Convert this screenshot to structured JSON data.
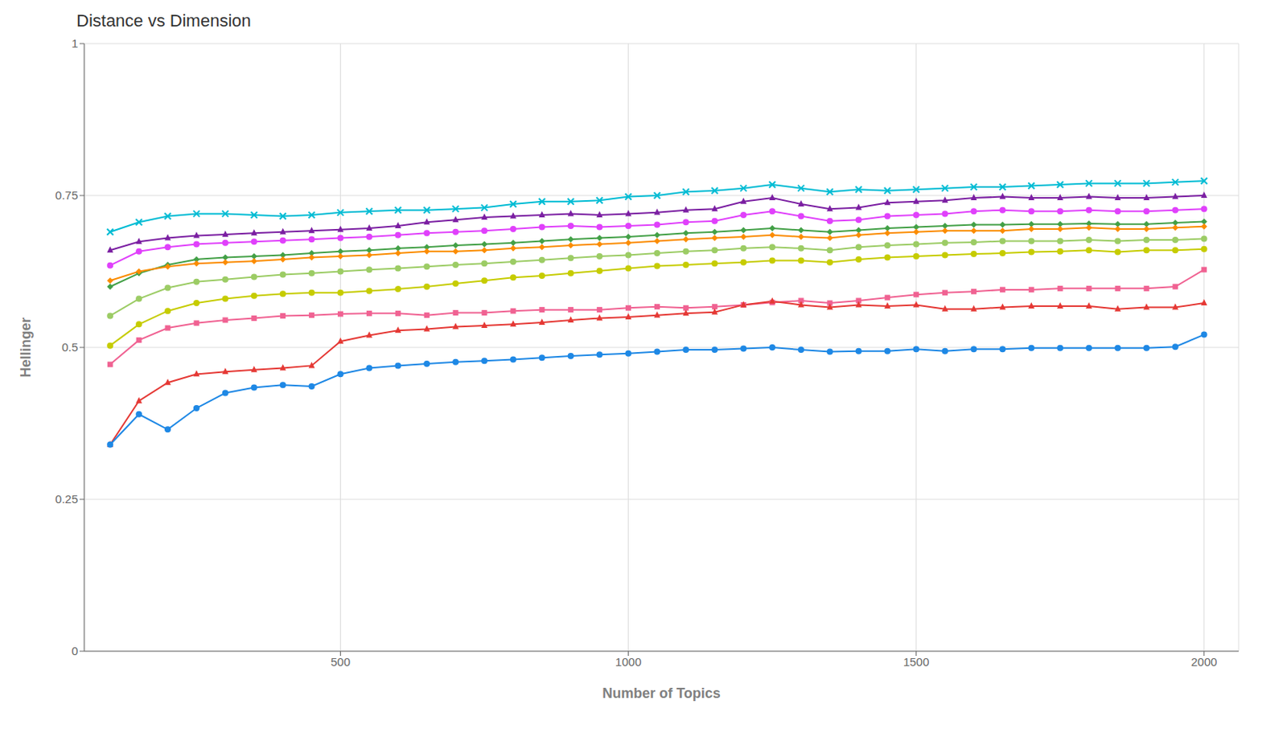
{
  "chart_data": {
    "type": "line",
    "title": "Distance vs Dimension",
    "xlabel": "Number of Topics",
    "ylabel": "Hellinger",
    "xlim": [
      55,
      2060
    ],
    "xticks": [
      500,
      1000,
      1500,
      2000
    ],
    "ylim": [
      0,
      1
    ],
    "yticks": [
      0,
      0.25,
      0.5,
      0.75,
      1
    ],
    "grid": true,
    "x": [
      100,
      150,
      200,
      250,
      300,
      350,
      400,
      450,
      500,
      550,
      600,
      650,
      700,
      750,
      800,
      850,
      900,
      950,
      1000,
      1050,
      1100,
      1150,
      1200,
      1250,
      1300,
      1350,
      1400,
      1450,
      1500,
      1550,
      1600,
      1650,
      1700,
      1750,
      1800,
      1850,
      1900,
      1950,
      2000
    ],
    "series": [
      {
        "color": "#00bcd4",
        "marker": "x",
        "values": [
          0.69,
          0.706,
          0.716,
          0.72,
          0.72,
          0.718,
          0.716,
          0.718,
          0.722,
          0.724,
          0.726,
          0.726,
          0.728,
          0.73,
          0.736,
          0.74,
          0.74,
          0.742,
          0.748,
          0.75,
          0.756,
          0.758,
          0.762,
          0.768,
          0.762,
          0.756,
          0.76,
          0.758,
          0.76,
          0.762,
          0.764,
          0.764,
          0.766,
          0.768,
          0.77,
          0.77,
          0.77,
          0.772,
          0.774
        ]
      },
      {
        "color": "#7b1fa2",
        "marker": "triangle",
        "values": [
          0.66,
          0.674,
          0.68,
          0.684,
          0.686,
          0.688,
          0.69,
          0.692,
          0.694,
          0.696,
          0.7,
          0.706,
          0.71,
          0.714,
          0.716,
          0.718,
          0.72,
          0.718,
          0.72,
          0.722,
          0.726,
          0.728,
          0.74,
          0.746,
          0.736,
          0.728,
          0.73,
          0.738,
          0.74,
          0.742,
          0.746,
          0.748,
          0.746,
          0.746,
          0.748,
          0.746,
          0.746,
          0.748,
          0.75
        ]
      },
      {
        "color": "#e040fb",
        "marker": "circle",
        "values": [
          0.635,
          0.658,
          0.665,
          0.67,
          0.672,
          0.674,
          0.676,
          0.678,
          0.68,
          0.682,
          0.685,
          0.688,
          0.69,
          0.692,
          0.695,
          0.698,
          0.7,
          0.698,
          0.7,
          0.702,
          0.706,
          0.708,
          0.718,
          0.724,
          0.716,
          0.708,
          0.71,
          0.716,
          0.718,
          0.72,
          0.724,
          0.726,
          0.724,
          0.724,
          0.726,
          0.724,
          0.724,
          0.726,
          0.728
        ]
      },
      {
        "color": "#43a047",
        "marker": "diamond",
        "values": [
          0.6,
          0.622,
          0.636,
          0.645,
          0.648,
          0.65,
          0.652,
          0.655,
          0.658,
          0.66,
          0.663,
          0.665,
          0.668,
          0.67,
          0.672,
          0.675,
          0.678,
          0.68,
          0.682,
          0.685,
          0.688,
          0.69,
          0.693,
          0.696,
          0.693,
          0.69,
          0.693,
          0.696,
          0.698,
          0.7,
          0.702,
          0.702,
          0.703,
          0.703,
          0.704,
          0.703,
          0.703,
          0.705,
          0.707
        ]
      },
      {
        "color": "#fb8c00",
        "marker": "diamond",
        "values": [
          0.61,
          0.625,
          0.633,
          0.638,
          0.64,
          0.642,
          0.645,
          0.648,
          0.65,
          0.652,
          0.655,
          0.658,
          0.658,
          0.66,
          0.663,
          0.665,
          0.668,
          0.67,
          0.672,
          0.675,
          0.678,
          0.68,
          0.682,
          0.685,
          0.682,
          0.68,
          0.685,
          0.688,
          0.69,
          0.692,
          0.692,
          0.692,
          0.695,
          0.695,
          0.697,
          0.695,
          0.695,
          0.697,
          0.699
        ]
      },
      {
        "color": "#9ccc65",
        "marker": "circle",
        "values": [
          0.552,
          0.58,
          0.598,
          0.608,
          0.612,
          0.616,
          0.62,
          0.622,
          0.625,
          0.628,
          0.63,
          0.633,
          0.636,
          0.638,
          0.641,
          0.644,
          0.647,
          0.65,
          0.652,
          0.655,
          0.658,
          0.66,
          0.663,
          0.665,
          0.663,
          0.66,
          0.665,
          0.668,
          0.67,
          0.672,
          0.673,
          0.675,
          0.675,
          0.675,
          0.677,
          0.675,
          0.677,
          0.677,
          0.679
        ]
      },
      {
        "color": "#c6cc00",
        "marker": "circle",
        "values": [
          0.503,
          0.538,
          0.56,
          0.573,
          0.58,
          0.585,
          0.588,
          0.59,
          0.59,
          0.593,
          0.596,
          0.6,
          0.605,
          0.61,
          0.615,
          0.618,
          0.622,
          0.626,
          0.63,
          0.634,
          0.636,
          0.638,
          0.64,
          0.643,
          0.643,
          0.64,
          0.645,
          0.648,
          0.65,
          0.652,
          0.654,
          0.655,
          0.657,
          0.658,
          0.66,
          0.657,
          0.66,
          0.66,
          0.662
        ]
      },
      {
        "color": "#f06292",
        "marker": "square",
        "values": [
          0.472,
          0.512,
          0.532,
          0.54,
          0.545,
          0.548,
          0.552,
          0.553,
          0.555,
          0.556,
          0.556,
          0.553,
          0.557,
          0.557,
          0.56,
          0.562,
          0.562,
          0.562,
          0.565,
          0.567,
          0.565,
          0.567,
          0.57,
          0.574,
          0.577,
          0.573,
          0.577,
          0.582,
          0.587,
          0.59,
          0.592,
          0.595,
          0.595,
          0.597,
          0.597,
          0.597,
          0.597,
          0.6,
          0.628
        ]
      },
      {
        "color": "#e53935",
        "marker": "triangle",
        "values": [
          0.34,
          0.412,
          0.442,
          0.456,
          0.46,
          0.463,
          0.466,
          0.47,
          0.51,
          0.52,
          0.528,
          0.53,
          0.534,
          0.536,
          0.538,
          0.541,
          0.545,
          0.548,
          0.55,
          0.553,
          0.556,
          0.558,
          0.57,
          0.576,
          0.57,
          0.566,
          0.57,
          0.568,
          0.57,
          0.563,
          0.563,
          0.566,
          0.568,
          0.568,
          0.568,
          0.563,
          0.566,
          0.566,
          0.573
        ]
      },
      {
        "color": "#1e88e5",
        "marker": "circle",
        "values": [
          0.34,
          0.39,
          0.365,
          0.4,
          0.425,
          0.434,
          0.438,
          0.436,
          0.456,
          0.466,
          0.47,
          0.473,
          0.476,
          0.478,
          0.48,
          0.483,
          0.486,
          0.488,
          0.49,
          0.493,
          0.496,
          0.496,
          0.498,
          0.5,
          0.496,
          0.493,
          0.494,
          0.494,
          0.497,
          0.494,
          0.497,
          0.497,
          0.499,
          0.499,
          0.499,
          0.499,
          0.499,
          0.501,
          0.521
        ]
      }
    ]
  }
}
